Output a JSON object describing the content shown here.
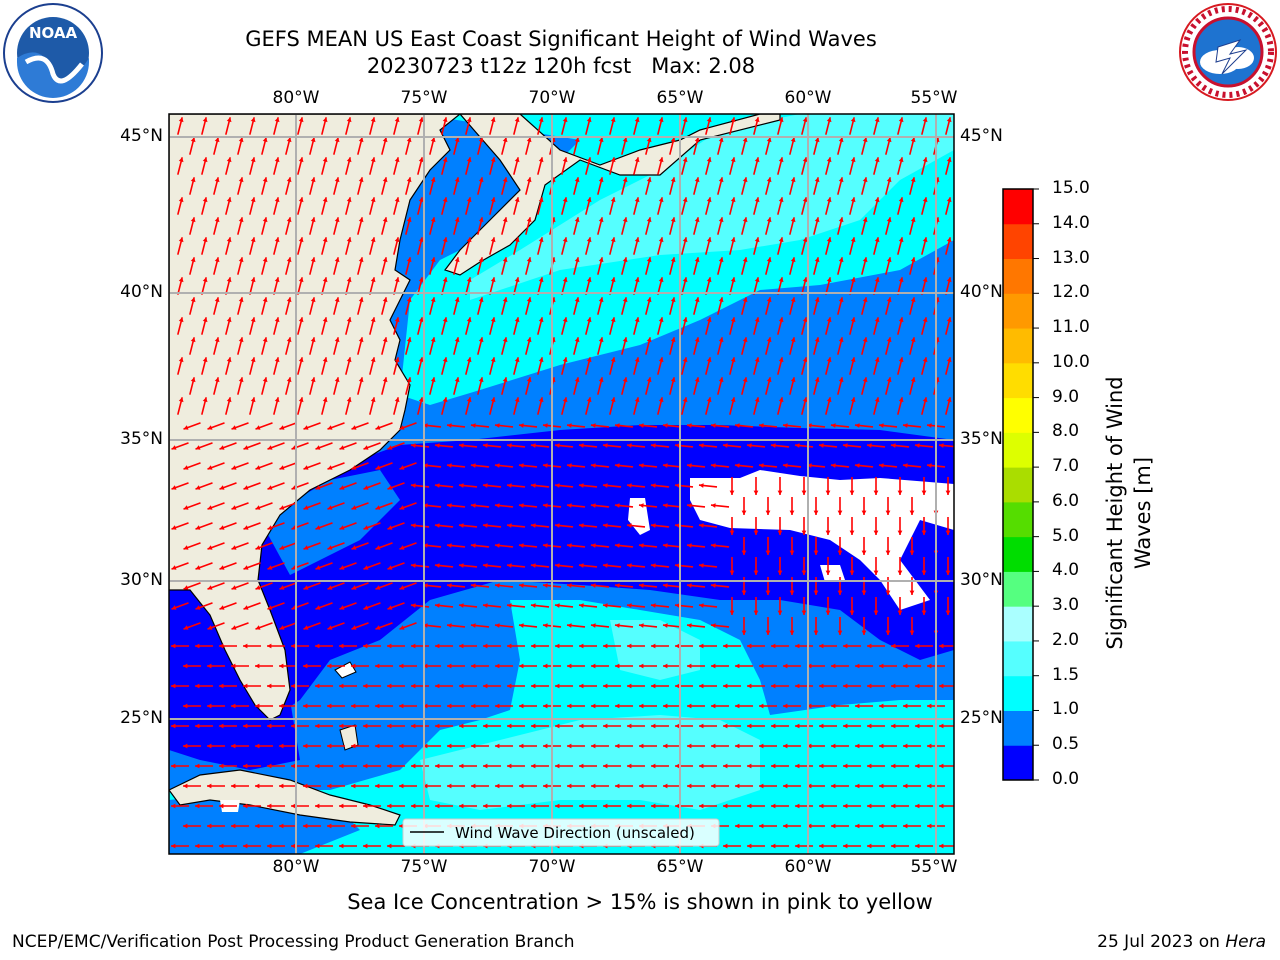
{
  "header": {
    "title_line1": "GEFS MEAN US East Coast Significant Height of Wind Waves",
    "title_line2": "20230723 t12z 120h fcst   Max: 2.08",
    "left_logo": "noaa-logo",
    "left_logo_text": "NOAA",
    "right_logo": "national-weather-service-logo"
  },
  "map": {
    "lon_ticks_top": [
      "80°W",
      "75°W",
      "70°W",
      "65°W",
      "60°W",
      "55°W"
    ],
    "lon_ticks_bottom": [
      "80°W",
      "75°W",
      "70°W",
      "65°W",
      "60°W",
      "55°W"
    ],
    "lat_ticks_left": [
      "45°N",
      "40°N",
      "35°N",
      "30°N",
      "25°N"
    ],
    "lat_ticks_right": [
      "45°N",
      "40°N",
      "35°N",
      "30°N",
      "25°N"
    ],
    "legend_label": "Wind Wave Direction (unscaled)",
    "arrow_color": "#ff0000",
    "land_color": "#efedde"
  },
  "colorbar": {
    "label": "Significant Height of Wind Waves [m]",
    "ticks": [
      "0.0",
      "0.5",
      "1.0",
      "1.5",
      "2.0",
      "3.0",
      "4.0",
      "5.0",
      "6.0",
      "7.0",
      "8.0",
      "9.0",
      "10.0",
      "11.0",
      "12.0",
      "13.0",
      "14.0",
      "15.0"
    ],
    "colors": [
      "#0000ff",
      "#0080ff",
      "#00ffff",
      "#55ffff",
      "#aaffff",
      "#55ff80",
      "#00dd00",
      "#55dd00",
      "#aadd00",
      "#ddff00",
      "#ffff00",
      "#ffdd00",
      "#ffbb00",
      "#ff9900",
      "#ff7700",
      "#ff4400",
      "#ff0000"
    ]
  },
  "footer": {
    "sea_ice_note": "Sea Ice Concentration > 15% is shown in pink to yellow",
    "producer": "NCEP/EMC/Verification Post Processing Product Generation Branch",
    "date_prefix": "25 Jul 2023 on ",
    "date_machine": "Hera"
  }
}
